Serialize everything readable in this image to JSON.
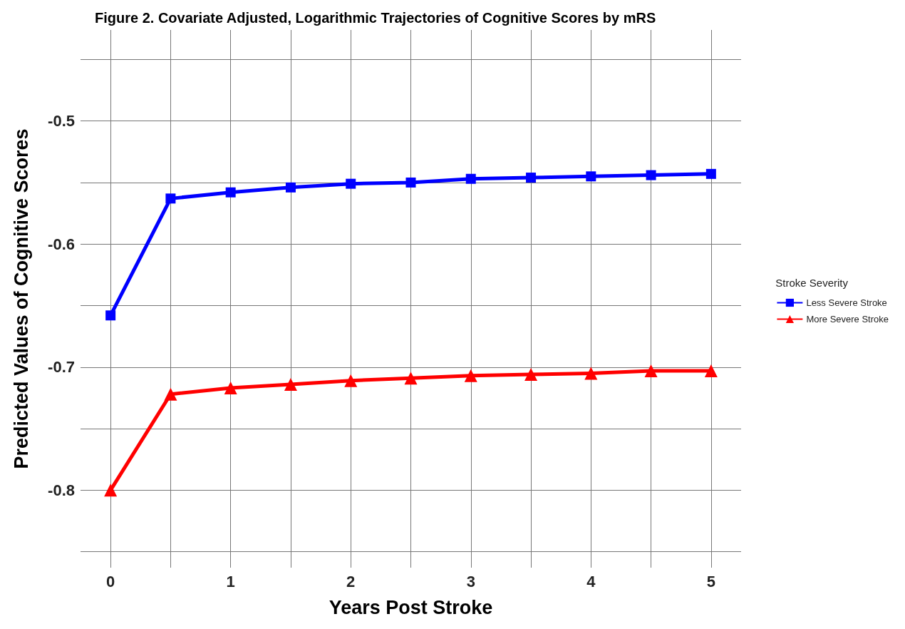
{
  "chart_data": {
    "type": "line",
    "title": "Figure 2. Covariate Adjusted, Logarithmic Trajectories of Cognitive Scores by mRS",
    "xlabel": "Years Post Stroke",
    "ylabel": "Predicted Values of Cognitive Scores",
    "legend_title": "Stroke Severity",
    "legend": "right",
    "grid": true,
    "x": [
      0,
      0.5,
      1,
      1.5,
      2,
      2.5,
      3,
      3.5,
      4,
      4.5,
      5
    ],
    "xlim": [
      -0.25,
      5.25
    ],
    "xticks": [
      0,
      {
        "value": 0.5,
        "label": null
      },
      1,
      {
        "value": 1.5,
        "label": null
      },
      2,
      {
        "value": 2.5,
        "label": null
      },
      3,
      {
        "value": 3.5,
        "label": null
      },
      4,
      {
        "value": 4.5,
        "label": null
      },
      5
    ],
    "ylim": [
      -0.863,
      -0.426
    ],
    "yticks": [
      {
        "value": -0.85,
        "label": null
      },
      -0.8,
      {
        "value": -0.75,
        "label": null
      },
      -0.7,
      {
        "value": -0.65,
        "label": null
      },
      -0.6,
      {
        "value": -0.55,
        "label": null
      },
      -0.5,
      {
        "value": -0.45,
        "label": null
      }
    ],
    "line_style": "solid",
    "series": [
      {
        "name": "Less Severe Stroke",
        "color": "#0000ff",
        "marker": "square",
        "values": [
          -0.658,
          -0.563,
          -0.558,
          -0.554,
          -0.551,
          -0.55,
          -0.547,
          -0.546,
          -0.545,
          -0.544,
          -0.543
        ]
      },
      {
        "name": "More Severe Stroke",
        "color": "#ff0000",
        "marker": "triangle",
        "values": [
          -0.8,
          -0.722,
          -0.717,
          -0.714,
          -0.711,
          -0.709,
          -0.707,
          -0.706,
          -0.705,
          -0.703,
          -0.703
        ]
      }
    ]
  }
}
